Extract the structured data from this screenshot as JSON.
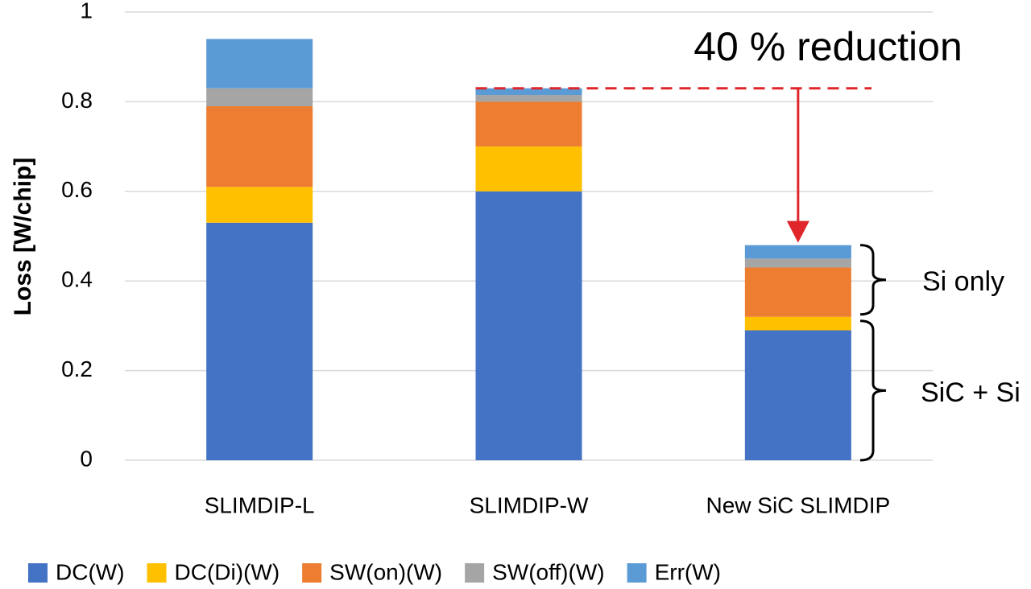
{
  "chart_data": {
    "type": "stacked_bar",
    "categories": [
      "SLIMDIP-L",
      "SLIMDIP-W",
      "New SiC SLIMDIP"
    ],
    "series": [
      {
        "name": "DC(W)",
        "color": "#4472c4",
        "values": [
          0.53,
          0.6,
          0.29
        ]
      },
      {
        "name": "DC(Di)(W)",
        "color": "#ffc000",
        "values": [
          0.08,
          0.1,
          0.03
        ]
      },
      {
        "name": "SW(on)(W)",
        "color": "#ed7d31",
        "values": [
          0.18,
          0.1,
          0.11
        ]
      },
      {
        "name": "SW(off)(W)",
        "color": "#a5a5a5",
        "values": [
          0.04,
          0.015,
          0.02
        ]
      },
      {
        "name": "Err(W)",
        "color": "#5b9bd5",
        "values": [
          0.11,
          0.015,
          0.03
        ]
      }
    ],
    "y_label": "Loss [W/chip]",
    "ylim": [
      0,
      1
    ],
    "yticks": [
      0,
      0.2,
      0.4,
      0.6,
      0.8,
      1
    ],
    "grid": true,
    "legend": "bottom",
    "annotations": [
      "40 % reduction",
      "Si only",
      "SiC + Si"
    ]
  }
}
